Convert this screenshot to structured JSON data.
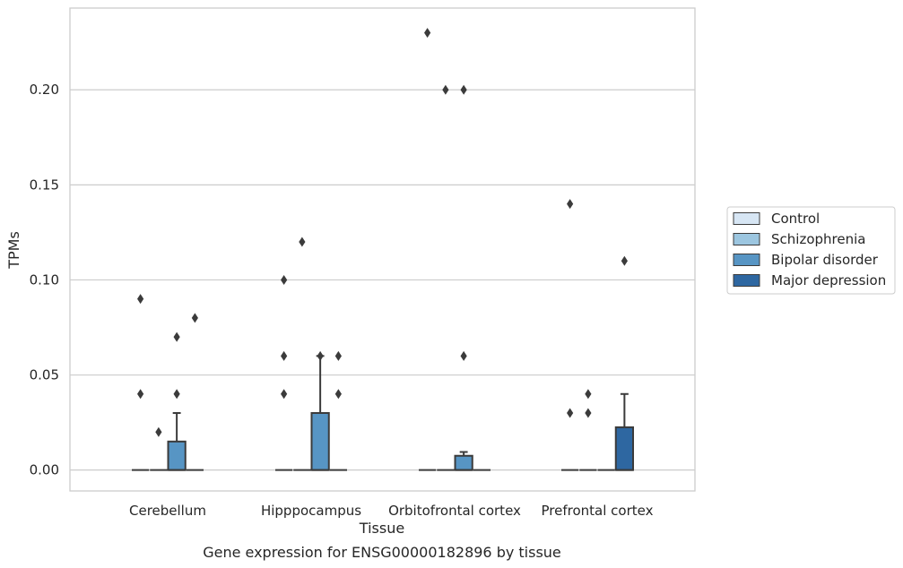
{
  "chart_data": {
    "type": "box",
    "title": "",
    "caption": "Gene expression for ENSG00000182896 by tissue",
    "xlabel": "Tissue",
    "ylabel": "TPMs",
    "ylim": [
      -0.011,
      0.243
    ],
    "yticks": [
      "0.00",
      "0.05",
      "0.10",
      "0.15",
      "0.20"
    ],
    "ytick_values": [
      0.0,
      0.05,
      0.1,
      0.15,
      0.2
    ],
    "grid": "horizontal",
    "legend_position": "right",
    "categories": [
      "Cerebellum",
      "Hipppocampus",
      "Orbitofrontal cortex",
      "Prefrontal cortex"
    ],
    "series": [
      {
        "name": "Control",
        "color": "#d7e6f4",
        "boxes": [
          {
            "q1": 0,
            "median": 0,
            "q3": 0,
            "whisker_low": 0,
            "whisker_high": 0,
            "outliers": [
              0.04,
              0.09
            ]
          },
          {
            "q1": 0,
            "median": 0,
            "q3": 0,
            "whisker_low": 0,
            "whisker_high": 0,
            "outliers": [
              0.04,
              0.06,
              0.1
            ]
          },
          {
            "q1": 0,
            "median": 0,
            "q3": 0,
            "whisker_low": 0,
            "whisker_high": 0,
            "outliers": [
              0.23
            ]
          },
          {
            "q1": 0,
            "median": 0,
            "q3": 0,
            "whisker_low": 0,
            "whisker_high": 0,
            "outliers": [
              0.03,
              0.14
            ]
          }
        ]
      },
      {
        "name": "Schizophrenia",
        "color": "#9cc6e0",
        "boxes": [
          {
            "q1": 0,
            "median": 0,
            "q3": 0,
            "whisker_low": 0,
            "whisker_high": 0,
            "outliers": [
              0.02
            ]
          },
          {
            "q1": 0,
            "median": 0,
            "q3": 0,
            "whisker_low": 0,
            "whisker_high": 0,
            "outliers": [
              0.12
            ]
          },
          {
            "q1": 0,
            "median": 0,
            "q3": 0,
            "whisker_low": 0,
            "whisker_high": 0,
            "outliers": [
              0.2
            ]
          },
          {
            "q1": 0,
            "median": 0,
            "q3": 0,
            "whisker_low": 0,
            "whisker_high": 0,
            "outliers": [
              0.03,
              0.04
            ]
          }
        ]
      },
      {
        "name": "Bipolar disorder",
        "color": "#5795c4",
        "boxes": [
          {
            "q1": 0,
            "median": 0,
            "q3": 0.015,
            "whisker_low": 0,
            "whisker_high": 0.03,
            "outliers": [
              0.04,
              0.07
            ]
          },
          {
            "q1": 0,
            "median": 0,
            "q3": 0.03,
            "whisker_low": 0,
            "whisker_high": 0.06,
            "outliers": [
              0.06
            ]
          },
          {
            "q1": 0,
            "median": 0,
            "q3": 0.0075,
            "whisker_low": 0,
            "whisker_high": 0.0095,
            "outliers": [
              0.06,
              0.2
            ]
          },
          {
            "q1": 0,
            "median": 0,
            "q3": 0,
            "whisker_low": 0,
            "whisker_high": 0,
            "outliers": []
          }
        ]
      },
      {
        "name": "Major depression",
        "color": "#2e67a1",
        "boxes": [
          {
            "q1": 0,
            "median": 0,
            "q3": 0,
            "whisker_low": 0,
            "whisker_high": 0,
            "outliers": [
              0.08
            ]
          },
          {
            "q1": 0,
            "median": 0,
            "q3": 0,
            "whisker_low": 0,
            "whisker_high": 0,
            "outliers": [
              0.04,
              0.06
            ]
          },
          {
            "q1": 0,
            "median": 0,
            "q3": 0,
            "whisker_low": 0,
            "whisker_high": 0,
            "outliers": []
          },
          {
            "q1": 0,
            "median": 0,
            "q3": 0.0225,
            "whisker_low": 0,
            "whisker_high": 0.04,
            "outliers": [
              0.11
            ]
          }
        ]
      }
    ]
  }
}
